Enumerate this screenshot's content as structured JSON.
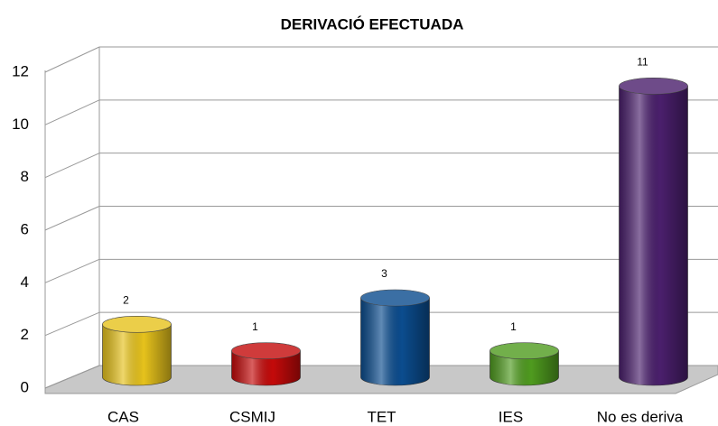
{
  "chart_data": {
    "type": "bar",
    "title": "DERIVACIÓ EFECTUADA",
    "categories": [
      "CAS",
      "CSMIJ",
      "TET",
      "IES",
      "No es deriva"
    ],
    "values": [
      2,
      1,
      3,
      1,
      11
    ],
    "colors": [
      "#e6c21c",
      "#c40a0a",
      "#0b4c8e",
      "#4f9b1f",
      "#4a1f6c"
    ],
    "ylim": [
      0,
      12
    ],
    "yticks": [
      0,
      2,
      4,
      6,
      8,
      10,
      12
    ],
    "grid": true
  }
}
